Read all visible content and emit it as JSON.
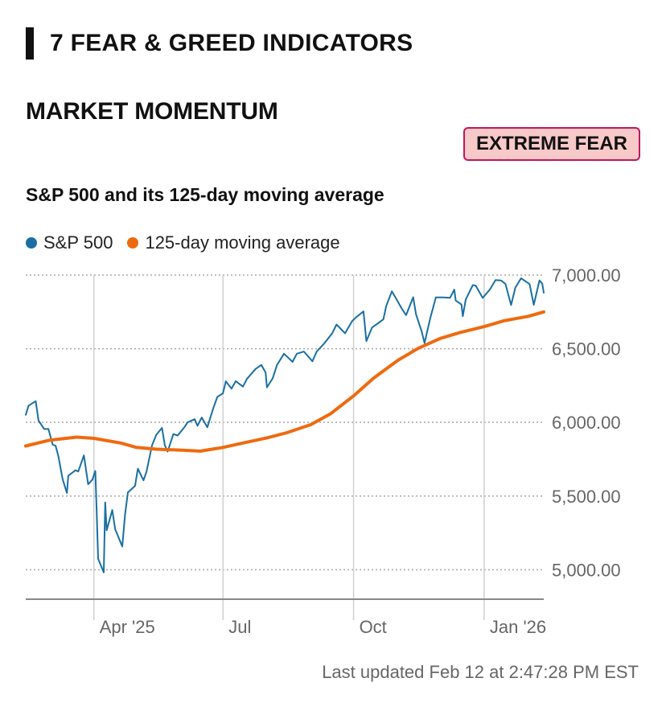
{
  "header": {
    "section_title": "7 FEAR & GREED INDICATORS"
  },
  "indicator": {
    "title": "MARKET MOMENTUM",
    "rating": "EXTREME FEAR"
  },
  "colors": {
    "sp500": "#1a6fa3",
    "moving_average": "#ee6a10",
    "badge_bg": "#f8c9c9",
    "badge_border": "#c2185b"
  },
  "chart_data": {
    "type": "line",
    "title": "S&P 500 and its 125-day moving average",
    "legend_position": "top-left",
    "y_axis": {
      "side": "right",
      "ylim": [
        4800,
        7000
      ],
      "ticks": [
        7000,
        6500,
        6000,
        5500,
        5000
      ],
      "tick_labels": [
        "7,000.00",
        "6,500.00",
        "6,000.00",
        "5,500.00",
        "5,000.00"
      ]
    },
    "x_axis": {
      "range": [
        "2025-02-12",
        "2026-02-12"
      ],
      "ticks": [
        "2025-04-01",
        "2025-07-01",
        "2025-10-01",
        "2026-01-01"
      ],
      "tick_labels": [
        "Apr '25",
        "Jul",
        "Oct",
        "Jan '26"
      ]
    },
    "series": [
      {
        "name": "S&P 500",
        "color": "#1a6fa3",
        "points": [
          [
            "2025-02-12",
            6051
          ],
          [
            "2025-02-14",
            6114
          ],
          [
            "2025-02-19",
            6144
          ],
          [
            "2025-02-21",
            6013
          ],
          [
            "2025-02-25",
            5955
          ],
          [
            "2025-02-28",
            5955
          ],
          [
            "2025-03-03",
            5849
          ],
          [
            "2025-03-05",
            5842
          ],
          [
            "2025-03-07",
            5770
          ],
          [
            "2025-03-10",
            5614
          ],
          [
            "2025-03-13",
            5521
          ],
          [
            "2025-03-14",
            5638
          ],
          [
            "2025-03-19",
            5675
          ],
          [
            "2025-03-21",
            5667
          ],
          [
            "2025-03-25",
            5776
          ],
          [
            "2025-03-28",
            5580
          ],
          [
            "2025-03-31",
            5612
          ],
          [
            "2025-04-02",
            5670
          ],
          [
            "2025-04-03",
            5396
          ],
          [
            "2025-04-04",
            5074
          ],
          [
            "2025-04-08",
            4982
          ],
          [
            "2025-04-09",
            5457
          ],
          [
            "2025-04-10",
            5268
          ],
          [
            "2025-04-14",
            5405
          ],
          [
            "2025-04-16",
            5275
          ],
          [
            "2025-04-21",
            5158
          ],
          [
            "2025-04-23",
            5376
          ],
          [
            "2025-04-25",
            5525
          ],
          [
            "2025-04-30",
            5569
          ],
          [
            "2025-05-02",
            5686
          ],
          [
            "2025-05-06",
            5607
          ],
          [
            "2025-05-08",
            5663
          ],
          [
            "2025-05-12",
            5844
          ],
          [
            "2025-05-15",
            5916
          ],
          [
            "2025-05-19",
            5963
          ],
          [
            "2025-05-21",
            5845
          ],
          [
            "2025-05-23",
            5802
          ],
          [
            "2025-05-27",
            5921
          ],
          [
            "2025-05-30",
            5911
          ],
          [
            "2025-06-04",
            5970
          ],
          [
            "2025-06-06",
            6000
          ],
          [
            "2025-06-11",
            6022
          ],
          [
            "2025-06-13",
            5977
          ],
          [
            "2025-06-16",
            6033
          ],
          [
            "2025-06-20",
            5967
          ],
          [
            "2025-06-24",
            6092
          ],
          [
            "2025-06-27",
            6173
          ],
          [
            "2025-07-01",
            6198
          ],
          [
            "2025-07-03",
            6279
          ],
          [
            "2025-07-07",
            6229
          ],
          [
            "2025-07-10",
            6280
          ],
          [
            "2025-07-15",
            6243
          ],
          [
            "2025-07-18",
            6297
          ],
          [
            "2025-07-24",
            6363
          ],
          [
            "2025-07-28",
            6390
          ],
          [
            "2025-07-31",
            6339
          ],
          [
            "2025-08-01",
            6238
          ],
          [
            "2025-08-05",
            6299
          ],
          [
            "2025-08-08",
            6389
          ],
          [
            "2025-08-13",
            6466
          ],
          [
            "2025-08-19",
            6411
          ],
          [
            "2025-08-22",
            6466
          ],
          [
            "2025-08-27",
            6481
          ],
          [
            "2025-09-02",
            6415
          ],
          [
            "2025-09-05",
            6481
          ],
          [
            "2025-09-10",
            6532
          ],
          [
            "2025-09-16",
            6606
          ],
          [
            "2025-09-19",
            6664
          ],
          [
            "2025-09-25",
            6605
          ],
          [
            "2025-09-30",
            6688
          ],
          [
            "2025-10-03",
            6715
          ],
          [
            "2025-10-08",
            6753
          ],
          [
            "2025-10-10",
            6552
          ],
          [
            "2025-10-14",
            6644
          ],
          [
            "2025-10-17",
            6664
          ],
          [
            "2025-10-22",
            6699
          ],
          [
            "2025-10-24",
            6791
          ],
          [
            "2025-10-28",
            6890
          ],
          [
            "2025-10-31",
            6840
          ],
          [
            "2025-11-04",
            6771
          ],
          [
            "2025-11-07",
            6728
          ],
          [
            "2025-11-12",
            6850
          ],
          [
            "2025-11-14",
            6734
          ],
          [
            "2025-11-18",
            6617
          ],
          [
            "2025-11-20",
            6538
          ],
          [
            "2025-11-24",
            6705
          ],
          [
            "2025-11-28",
            6849
          ],
          [
            "2025-12-03",
            6849
          ],
          [
            "2025-12-08",
            6846
          ],
          [
            "2025-12-11",
            6901
          ],
          [
            "2025-12-12",
            6827
          ],
          [
            "2025-12-16",
            6800
          ],
          [
            "2025-12-17",
            6721
          ],
          [
            "2025-12-19",
            6834
          ],
          [
            "2025-12-24",
            6932
          ],
          [
            "2025-12-26",
            6929
          ],
          [
            "2025-12-31",
            6845
          ],
          [
            "2026-01-05",
            6902
          ],
          [
            "2026-01-09",
            6966
          ],
          [
            "2026-01-13",
            6963
          ],
          [
            "2026-01-16",
            6940
          ],
          [
            "2026-01-20",
            6797
          ],
          [
            "2026-01-23",
            6915
          ],
          [
            "2026-01-27",
            6978
          ],
          [
            "2026-02-02",
            6939
          ],
          [
            "2026-02-05",
            6798
          ],
          [
            "2026-02-09",
            6964
          ],
          [
            "2026-02-11",
            6941
          ],
          [
            "2026-02-12",
            6880
          ]
        ]
      },
      {
        "name": "125-day moving average",
        "color": "#ee6a10",
        "points": [
          [
            "2025-02-12",
            5840
          ],
          [
            "2025-03-01",
            5880
          ],
          [
            "2025-03-20",
            5900
          ],
          [
            "2025-04-01",
            5892
          ],
          [
            "2025-04-20",
            5860
          ],
          [
            "2025-05-01",
            5830
          ],
          [
            "2025-05-15",
            5818
          ],
          [
            "2025-06-01",
            5812
          ],
          [
            "2025-06-15",
            5805
          ],
          [
            "2025-07-01",
            5830
          ],
          [
            "2025-07-15",
            5860
          ],
          [
            "2025-08-01",
            5895
          ],
          [
            "2025-08-15",
            5930
          ],
          [
            "2025-09-01",
            5985
          ],
          [
            "2025-09-15",
            6060
          ],
          [
            "2025-10-01",
            6180
          ],
          [
            "2025-10-15",
            6300
          ],
          [
            "2025-11-01",
            6420
          ],
          [
            "2025-11-15",
            6500
          ],
          [
            "2025-12-01",
            6570
          ],
          [
            "2025-12-15",
            6610
          ],
          [
            "2026-01-01",
            6650
          ],
          [
            "2026-01-15",
            6690
          ],
          [
            "2026-02-01",
            6720
          ],
          [
            "2026-02-12",
            6750
          ]
        ]
      }
    ]
  },
  "footer": {
    "last_updated": "Last updated Feb 12 at 2:47:28 PM EST"
  }
}
